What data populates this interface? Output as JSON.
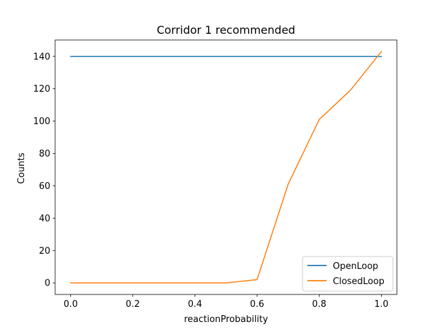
{
  "chart_data": {
    "type": "line",
    "title": "Corridor 1 recommended",
    "xlabel": "reactionProbability",
    "ylabel": "Counts",
    "xlim": [
      -0.05,
      1.05
    ],
    "ylim": [
      -7.15,
      150.15
    ],
    "xticks": [
      0.0,
      0.2,
      0.4,
      0.6,
      0.8,
      1.0
    ],
    "xtick_labels": [
      "0.0",
      "0.2",
      "0.4",
      "0.6",
      "0.8",
      "1.0"
    ],
    "yticks": [
      0,
      20,
      40,
      60,
      80,
      100,
      120,
      140
    ],
    "ytick_labels": [
      "0",
      "20",
      "40",
      "60",
      "80",
      "100",
      "120",
      "140"
    ],
    "grid": false,
    "legend_position": "lower right",
    "x": [
      0.0,
      0.1,
      0.2,
      0.3,
      0.4,
      0.5,
      0.6,
      0.7,
      0.8,
      0.9,
      1.0
    ],
    "series": [
      {
        "name": "OpenLoop",
        "color": "#1f77b4",
        "values": [
          140,
          140,
          140,
          140,
          140,
          140,
          140,
          140,
          140,
          140,
          140
        ]
      },
      {
        "name": "ClosedLoop",
        "color": "#ff7f0e",
        "values": [
          0,
          0,
          0,
          0,
          0,
          0,
          2,
          61,
          101,
          119,
          143
        ]
      }
    ]
  }
}
